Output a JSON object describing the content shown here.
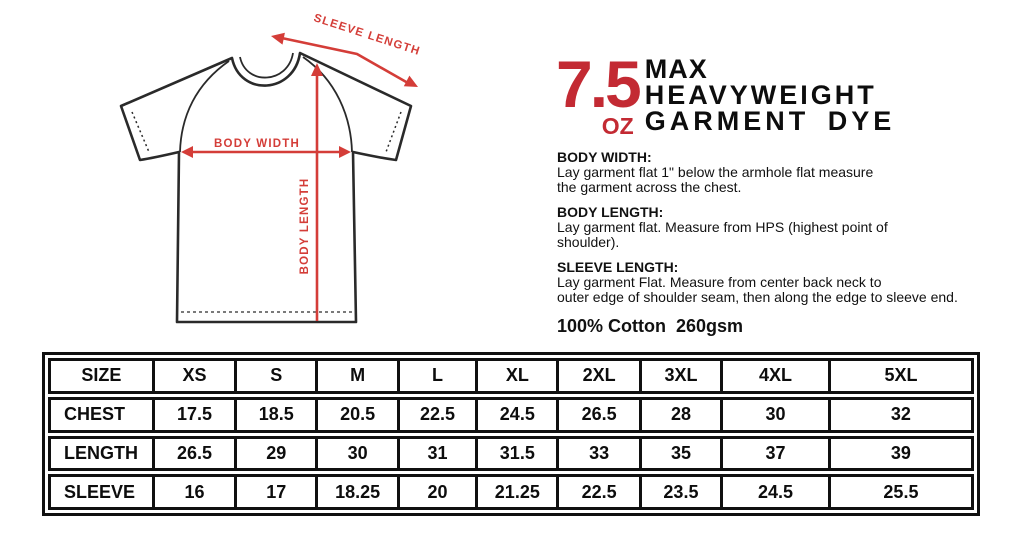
{
  "page": {
    "background": "#ffffff"
  },
  "diagram": {
    "labels": {
      "sleeve_length": "SLEEVE LENGTH",
      "body_width": "BODY WIDTH",
      "body_length": "BODY LENGTH"
    },
    "arrow_color": "#d43d38",
    "outline_color": "#2a2a2a"
  },
  "title": {
    "weight": "7.5",
    "unit": "OZ",
    "line1": "MAX",
    "line2": "HEAVYWEIGHT",
    "line3": "GARMENT DYE",
    "accent_color": "#c32a33"
  },
  "specs": [
    {
      "heading": "BODY WIDTH:",
      "body": "Lay garment flat 1\" below the armhole flat measure\nthe garment across the chest."
    },
    {
      "heading": "BODY LENGTH:",
      "body": "Lay garment flat. Measure from HPS (highest point of\nshoulder)."
    },
    {
      "heading": "SLEEVE LENGTH:",
      "body": "Lay garment Flat. Measure from center back neck to\nouter edge of shoulder seam, then along the edge to sleeve end."
    }
  ],
  "fabric_note": "100% Cotton  260gsm",
  "size_chart": {
    "header": [
      "SIZE",
      "XS",
      "S",
      "M",
      "L",
      "XL",
      "2XL",
      "3XL",
      "4XL",
      "5XL"
    ],
    "rows": [
      {
        "label": "CHEST",
        "values": [
          "17.5",
          "18.5",
          "20.5",
          "22.5",
          "24.5",
          "26.5",
          "28",
          "30",
          "32"
        ]
      },
      {
        "label": "LENGTH",
        "values": [
          "26.5",
          "29",
          "30",
          "31",
          "31.5",
          "33",
          "35",
          "37",
          "39"
        ]
      },
      {
        "label": "SLEEVE",
        "values": [
          "16",
          "17",
          "18.25",
          "20",
          "21.25",
          "22.5",
          "23.5",
          "24.5",
          "25.5"
        ]
      }
    ]
  }
}
